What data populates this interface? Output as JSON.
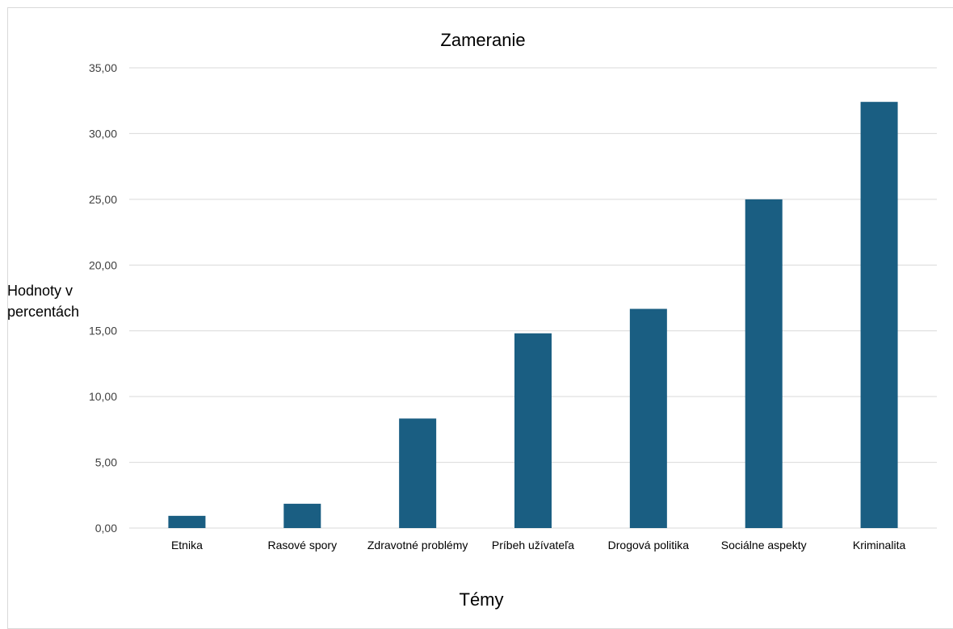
{
  "chart_data": {
    "type": "bar",
    "title": "Zameranie",
    "xlabel": "Témy",
    "ylabel": "Hodnoty v percentách",
    "ylabel_lines": [
      "Hodnoty v",
      "percentách"
    ],
    "categories": [
      "Etnika",
      "Rasové spory",
      "Zdravotné problémy",
      "Príbeh užívateľa",
      "Drogová politika",
      "Sociálne aspekty",
      "Kriminalita"
    ],
    "values": [
      0.93,
      1.85,
      8.33,
      14.81,
      16.67,
      25.0,
      32.41
    ],
    "ylim": [
      0,
      35
    ],
    "yticks": [
      "0,00",
      "5,00",
      "10,00",
      "15,00",
      "20,00",
      "25,00",
      "30,00",
      "35,00"
    ],
    "ytick_values": [
      0,
      5,
      10,
      15,
      20,
      25,
      30,
      35
    ],
    "grid": true,
    "legend": "none",
    "bar_color": "#1a5e82"
  }
}
